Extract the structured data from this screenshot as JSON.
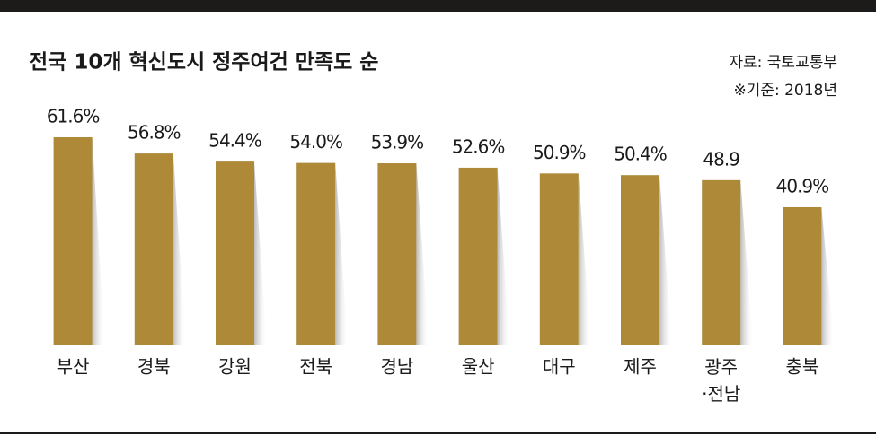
{
  "chart_data": {
    "type": "bar",
    "title": "전국 10개 혁신도시 정주여건 만족도 순",
    "source": "자료: 국토교통부",
    "note": "※기준: 2018년",
    "categories": [
      "부산",
      "경북",
      "강원",
      "전북",
      "경남",
      "울산",
      "대구",
      "제주",
      "광주\n·전남",
      "충북"
    ],
    "values": [
      61.6,
      56.8,
      54.4,
      54.0,
      53.9,
      52.6,
      50.9,
      50.4,
      48.9,
      40.9
    ],
    "value_labels": [
      "61.6%",
      "56.8%",
      "54.4%",
      "54.0%",
      "53.9%",
      "52.6%",
      "50.9%",
      "50.4%",
      "48.9",
      "40.9%"
    ],
    "color": "#ad8938"
  }
}
